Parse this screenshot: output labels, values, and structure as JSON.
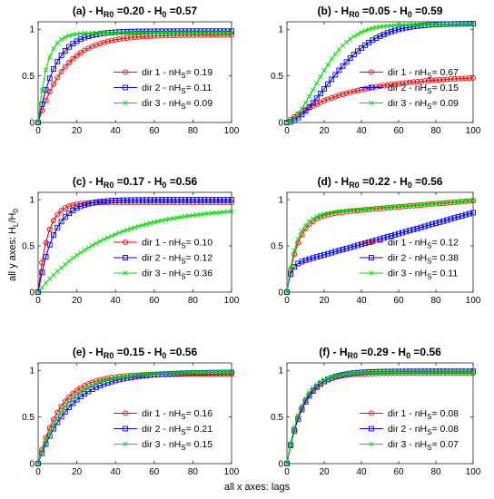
{
  "figure": {
    "ylabel": "all y axes: H_L/H_0",
    "xlabel": "all x axes: lags"
  },
  "colors": {
    "dir1": "#ff0000",
    "dir2": "#0000ff",
    "dir3": "#00dd00"
  },
  "chart_data": [
    {
      "type": "line",
      "panel": "(a)",
      "title_prefix": "(a) - H",
      "title_sub1": "R0",
      "title_mid": " =0.20 - H",
      "title_sub2": "0",
      "title_suffix": " =0.57",
      "xlim": [
        0,
        100
      ],
      "ylim": [
        0,
        1.08
      ],
      "xticks": [
        0,
        20,
        40,
        60,
        80,
        100
      ],
      "yticks": [
        0,
        0.5,
        1
      ],
      "series": [
        {
          "label_prefix": "dir 1 - nH",
          "label_sub": "S",
          "label_value": "= 0.19",
          "A": 0.94,
          "k": 0.072,
          "p": 1.0,
          "b": 0,
          "dir": "dir1",
          "marker": "circle"
        },
        {
          "label_prefix": "dir 2 - nH",
          "label_sub": "S",
          "label_value": "= 0.11",
          "A": 0.98,
          "k": 0.11,
          "p": 1.0,
          "b": 0,
          "dir": "dir2",
          "marker": "square"
        },
        {
          "label_prefix": "dir 3 - nH",
          "label_sub": "S",
          "label_value": "= 0.09",
          "A": 0.96,
          "k": 0.22,
          "p": 1.0,
          "b": 0,
          "dir": "dir3",
          "marker": "x"
        }
      ]
    },
    {
      "type": "line",
      "panel": "(b)",
      "title_prefix": "(b) - H",
      "title_sub1": "R0",
      "title_mid": " =0.05 - H",
      "title_sub2": "0",
      "title_suffix": " =0.59",
      "xlim": [
        0,
        100
      ],
      "ylim": [
        0,
        1.08
      ],
      "xticks": [
        0,
        20,
        40,
        60,
        80,
        100
      ],
      "yticks": [
        0,
        0.5,
        1
      ],
      "series": [
        {
          "label_prefix": "dir 1 - nH",
          "label_sub": "S",
          "label_value": "= 0.67",
          "A": 0.43,
          "k": 0.036,
          "p": 1.0,
          "b": 0.0006,
          "dir": "dir1",
          "marker": "circle"
        },
        {
          "label_prefix": "dir 2 - nH",
          "label_sub": "S",
          "label_value": "= 0.15",
          "A": 1.06,
          "k": 0.0022,
          "p": 1.75,
          "b": 0,
          "dir": "dir2",
          "marker": "square"
        },
        {
          "label_prefix": "dir 3 - nH",
          "label_sub": "S",
          "label_value": "= 0.09",
          "A": 1.05,
          "k": 0.004,
          "p": 1.75,
          "b": 0,
          "dir": "dir3",
          "marker": "x"
        }
      ]
    },
    {
      "type": "line",
      "panel": "(c)",
      "title_prefix": "(c) - H",
      "title_sub1": "R0",
      "title_mid": " =0.17 - H",
      "title_sub2": "0",
      "title_suffix": " =0.56",
      "xlim": [
        0,
        100
      ],
      "ylim": [
        0,
        1.08
      ],
      "xticks": [
        0,
        20,
        40,
        60,
        80,
        100
      ],
      "yticks": [
        0,
        0.5,
        1
      ],
      "series": [
        {
          "label_prefix": "dir 1 - nH",
          "label_sub": "S",
          "label_value": "= 0.10",
          "A": 0.97,
          "k": 0.2,
          "p": 1.0,
          "b": 0,
          "dir": "dir1",
          "marker": "circle"
        },
        {
          "label_prefix": "dir 2 - nH",
          "label_sub": "S",
          "label_value": "= 0.12",
          "A": 1.0,
          "k": 0.12,
          "p": 1.0,
          "b": 0,
          "dir": "dir2",
          "marker": "square"
        },
        {
          "label_prefix": "dir 3 - nH",
          "label_sub": "S",
          "label_value": "= 0.36",
          "A": 0.93,
          "k": 0.028,
          "p": 1.0,
          "b": 0,
          "dir": "dir3",
          "marker": "x"
        }
      ]
    },
    {
      "type": "line",
      "panel": "(d)",
      "title_prefix": "(d) - H",
      "title_sub1": "R0",
      "title_mid": " =0.22 - H",
      "title_sub2": "0",
      "title_suffix": " =0.56",
      "xlim": [
        0,
        100
      ],
      "ylim": [
        0,
        1.08
      ],
      "xticks": [
        0,
        20,
        40,
        60,
        80,
        100
      ],
      "yticks": [
        0,
        0.5,
        1
      ],
      "series": [
        {
          "label_prefix": "dir 1 - nH",
          "label_sub": "S",
          "label_value": "= 0.12",
          "A": 0.82,
          "k": 0.17,
          "p": 1.0,
          "b": 0.0017,
          "dir": "dir1",
          "marker": "circle"
        },
        {
          "label_prefix": "dir 2 - nH",
          "label_sub": "S",
          "label_value": "= 0.38",
          "A": 0.29,
          "k": 0.5,
          "p": 1.0,
          "b": 0.0057,
          "dir": "dir2",
          "marker": "square"
        },
        {
          "label_prefix": "dir 3 - nH",
          "label_sub": "S",
          "label_value": "= 0.11",
          "A": 0.83,
          "k": 0.19,
          "p": 1.0,
          "b": 0.0016,
          "dir": "dir3",
          "marker": "x"
        }
      ]
    },
    {
      "type": "line",
      "panel": "(e)",
      "title_prefix": "(e) - H",
      "title_sub1": "R0",
      "title_mid": " =0.15 - H",
      "title_sub2": "0",
      "title_suffix": " =0.56",
      "xlim": [
        0,
        100
      ],
      "ylim": [
        0,
        1.08
      ],
      "xticks": [
        0,
        20,
        40,
        60,
        80,
        100
      ],
      "yticks": [
        0,
        0.5,
        1
      ],
      "series": [
        {
          "label_prefix": "dir 1 - nH",
          "label_sub": "S",
          "label_value": "= 0.16",
          "A": 0.96,
          "k": 0.085,
          "p": 1.0,
          "b": 0,
          "dir": "dir1",
          "marker": "circle"
        },
        {
          "label_prefix": "dir 2 - nH",
          "label_sub": "S",
          "label_value": "= 0.21",
          "A": 0.98,
          "k": 0.06,
          "p": 1.0,
          "b": 0,
          "dir": "dir2",
          "marker": "square"
        },
        {
          "label_prefix": "dir 3 - nH",
          "label_sub": "S",
          "label_value": "= 0.15",
          "A": 0.98,
          "k": 0.07,
          "p": 1.0,
          "b": 0,
          "dir": "dir3",
          "marker": "x"
        }
      ]
    },
    {
      "type": "line",
      "panel": "(f)",
      "title_prefix": "(f) - H",
      "title_sub1": "R0",
      "title_mid": " =0.29 - H",
      "title_sub2": "0",
      "title_suffix": " =0.56",
      "xlim": [
        0,
        100
      ],
      "ylim": [
        0,
        1.08
      ],
      "xticks": [
        0,
        20,
        40,
        60,
        80,
        100
      ],
      "yticks": [
        0,
        0.5,
        1
      ],
      "series": [
        {
          "label_prefix": "dir 1 - nH",
          "label_sub": "S",
          "label_value": "= 0.08",
          "A": 0.97,
          "k": 0.12,
          "p": 1.0,
          "b": 0,
          "dir": "dir1",
          "marker": "circle"
        },
        {
          "label_prefix": "dir 2 - nH",
          "label_sub": "S",
          "label_value": "= 0.08",
          "A": 0.99,
          "k": 0.11,
          "p": 1.0,
          "b": 0,
          "dir": "dir2",
          "marker": "square"
        },
        {
          "label_prefix": "dir 3 - nH",
          "label_sub": "S",
          "label_value": "= 0.07",
          "A": 0.98,
          "k": 0.125,
          "p": 1.0,
          "b": 0,
          "dir": "dir3",
          "marker": "x"
        }
      ]
    }
  ]
}
